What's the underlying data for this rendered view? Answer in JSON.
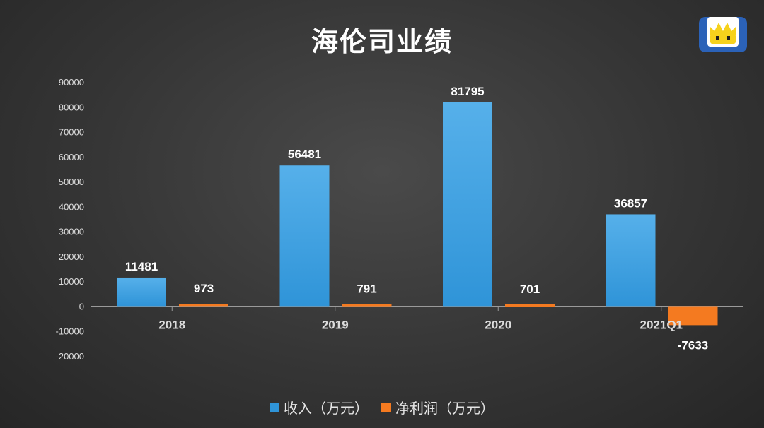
{
  "colors": {
    "revenue": "#2f94d8",
    "revenue_top": "#56b0ea",
    "profit": "#f47a20",
    "axis_text": "#dcdcdc",
    "label_text": "#ffffff"
  },
  "chart_data": {
    "type": "bar",
    "title": "海伦司业绩",
    "categories": [
      "2018",
      "2019",
      "2020",
      "2021Q1"
    ],
    "series": [
      {
        "name": "收入（万元）",
        "values": [
          11481,
          56481,
          81795,
          36857
        ]
      },
      {
        "name": "净利润（万元）",
        "values": [
          973,
          791,
          701,
          -7633
        ]
      }
    ],
    "ylim": [
      -20000,
      90000
    ],
    "yticks": [
      "-20000",
      "-10000",
      "0",
      "10000",
      "20000",
      "30000",
      "40000",
      "50000",
      "60000",
      "70000",
      "80000",
      "90000"
    ],
    "xlabel": "",
    "ylabel": "",
    "grid": false,
    "legend_position": "bottom"
  },
  "logo": {
    "icon": "cartoon-face-logo-icon"
  }
}
